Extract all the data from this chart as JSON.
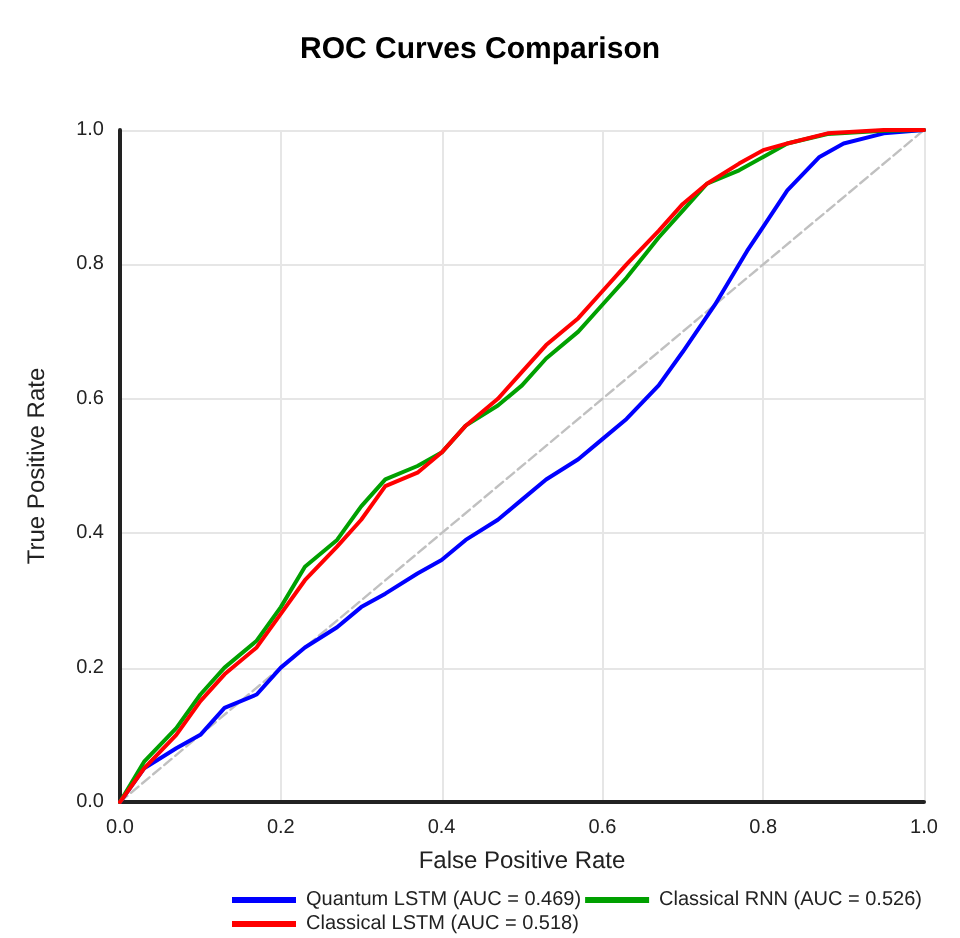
{
  "chart_data": {
    "type": "line",
    "title": "ROC Curves Comparison",
    "xlabel": "False Positive Rate",
    "ylabel": "True Positive Rate",
    "xlim": [
      0,
      1
    ],
    "xticks": [
      {
        "value": 0,
        "label": "0.0"
      },
      {
        "value": 0.2,
        "label": "0.2"
      },
      {
        "value": 0.4,
        "label": "0.4"
      },
      {
        "value": 0.6,
        "label": "0.6"
      },
      {
        "value": 0.8,
        "label": "0.8"
      },
      {
        "value": 1,
        "label": "1.0"
      }
    ],
    "ylim": [
      0,
      1
    ],
    "yticks": [
      {
        "value": 0,
        "label": "0.0"
      },
      {
        "value": 0.2,
        "label": "0.2"
      },
      {
        "value": 0.4,
        "label": "0.4"
      },
      {
        "value": 0.6,
        "label": "0.6"
      },
      {
        "value": 0.8,
        "label": "0.8"
      },
      {
        "value": 1,
        "label": "1.0"
      }
    ],
    "grid": true,
    "legend": "bottom",
    "marker": "none",
    "line_style": "solid",
    "series": [
      {
        "name": "Quantum LSTM (AUC = 0.469)",
        "color": "#0000ff",
        "x": [
          0,
          0.03,
          0.07,
          0.1,
          0.13,
          0.17,
          0.2,
          0.23,
          0.27,
          0.3,
          0.33,
          0.37,
          0.4,
          0.43,
          0.47,
          0.5,
          0.53,
          0.57,
          0.6,
          0.63,
          0.67,
          0.7,
          0.74,
          0.78,
          0.83,
          0.87,
          0.9,
          0.95,
          1
        ],
        "values": [
          0,
          0.05,
          0.08,
          0.1,
          0.14,
          0.16,
          0.2,
          0.23,
          0.26,
          0.29,
          0.31,
          0.34,
          0.36,
          0.39,
          0.42,
          0.45,
          0.48,
          0.51,
          0.54,
          0.57,
          0.62,
          0.67,
          0.74,
          0.82,
          0.91,
          0.96,
          0.98,
          0.995,
          1
        ]
      },
      {
        "name": "Classical RNN (AUC = 0.526)",
        "color": "#00a000",
        "x": [
          0,
          0.03,
          0.07,
          0.1,
          0.13,
          0.17,
          0.2,
          0.23,
          0.27,
          0.3,
          0.33,
          0.37,
          0.4,
          0.43,
          0.47,
          0.5,
          0.53,
          0.57,
          0.6,
          0.63,
          0.67,
          0.7,
          0.73,
          0.77,
          0.8,
          0.83,
          0.88,
          0.95,
          1
        ],
        "values": [
          0,
          0.06,
          0.11,
          0.16,
          0.2,
          0.24,
          0.29,
          0.35,
          0.39,
          0.44,
          0.48,
          0.5,
          0.52,
          0.56,
          0.59,
          0.62,
          0.66,
          0.7,
          0.74,
          0.78,
          0.84,
          0.88,
          0.92,
          0.94,
          0.96,
          0.98,
          0.994,
          0.999,
          1
        ]
      },
      {
        "name": "Classical LSTM (AUC = 0.518)",
        "color": "#ff0000",
        "x": [
          0,
          0.03,
          0.07,
          0.1,
          0.13,
          0.17,
          0.2,
          0.23,
          0.27,
          0.3,
          0.33,
          0.37,
          0.4,
          0.43,
          0.47,
          0.5,
          0.53,
          0.57,
          0.6,
          0.63,
          0.67,
          0.7,
          0.73,
          0.77,
          0.8,
          0.83,
          0.88,
          0.95,
          1
        ],
        "values": [
          0,
          0.05,
          0.1,
          0.15,
          0.19,
          0.23,
          0.28,
          0.33,
          0.38,
          0.42,
          0.47,
          0.49,
          0.52,
          0.56,
          0.6,
          0.64,
          0.68,
          0.72,
          0.76,
          0.8,
          0.85,
          0.89,
          0.92,
          0.95,
          0.97,
          0.98,
          0.995,
          1,
          1
        ]
      },
      {
        "color": "#c0c0c0",
        "line_style": "dashed",
        "x": [
          0,
          1
        ],
        "values": [
          0,
          1
        ]
      }
    ]
  }
}
